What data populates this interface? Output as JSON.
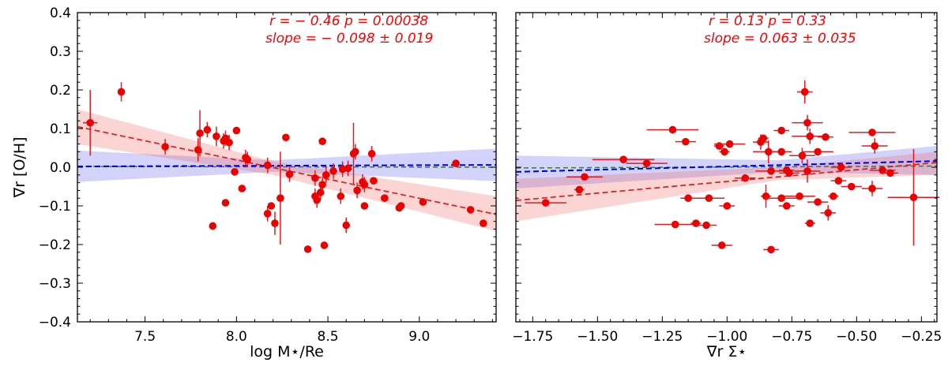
{
  "chart_data": [
    {
      "type": "scatter",
      "ylabel": "∇r [O/H]",
      "xlabel": "log M⋆/Re",
      "xlim": [
        7.13,
        9.42
      ],
      "ylim": [
        -0.4,
        0.4
      ],
      "xticks": [
        7.5,
        8.0,
        8.5,
        9.0
      ],
      "yticks": [
        -0.4,
        -0.3,
        -0.2,
        -0.1,
        0.0,
        0.1,
        0.2,
        0.3,
        0.4
      ],
      "annotation_line1": "r = − 0.46  p = 0.00038",
      "annotation_line2": "slope = − 0.098 ± 0.019",
      "points": [
        [
          7.2,
          0.115,
          0.04,
          0.085
        ],
        [
          7.37,
          0.195,
          0,
          0.025
        ],
        [
          7.61,
          0.053,
          0,
          0.02
        ],
        [
          7.79,
          0.045,
          0,
          0.03
        ],
        [
          7.8,
          0.088,
          0,
          0.06
        ],
        [
          7.84,
          0.097,
          0.02,
          0.02
        ],
        [
          7.87,
          -0.152,
          0,
          0
        ],
        [
          7.89,
          0.08,
          0,
          0.025
        ],
        [
          7.93,
          0.068,
          0,
          0.02
        ],
        [
          7.94,
          0.075,
          0,
          0.02
        ],
        [
          7.96,
          0.064,
          0,
          0.02
        ],
        [
          7.94,
          -0.092,
          0,
          0
        ],
        [
          7.99,
          -0.012,
          0,
          0
        ],
        [
          8.0,
          0.095,
          0,
          0
        ],
        [
          8.03,
          -0.055,
          0,
          0
        ],
        [
          8.05,
          0.025,
          0,
          0.02
        ],
        [
          8.06,
          0.02,
          0,
          0.02
        ],
        [
          8.17,
          0.005,
          0,
          0.02
        ],
        [
          8.17,
          -0.12,
          0,
          0.02
        ],
        [
          8.19,
          -0.1,
          0,
          0
        ],
        [
          8.21,
          -0.145,
          0,
          0.03
        ],
        [
          8.24,
          -0.08,
          0,
          0.12
        ],
        [
          8.27,
          0.077,
          0,
          0
        ],
        [
          8.29,
          -0.018,
          0,
          0.02
        ],
        [
          8.39,
          -0.212,
          0,
          0
        ],
        [
          8.43,
          -0.028,
          0,
          0.02
        ],
        [
          8.43,
          -0.075,
          0,
          0.02
        ],
        [
          8.44,
          -0.085,
          0,
          0.02
        ],
        [
          8.46,
          -0.065,
          0,
          0.02
        ],
        [
          8.47,
          -0.045,
          0,
          0.02
        ],
        [
          8.47,
          0.067,
          0,
          0
        ],
        [
          8.48,
          -0.202,
          0,
          0
        ],
        [
          8.49,
          -0.02,
          0,
          0.02
        ],
        [
          8.53,
          -0.01,
          0,
          0.02
        ],
        [
          8.57,
          -0.075,
          0,
          0.02
        ],
        [
          8.58,
          -0.005,
          0,
          0.02
        ],
        [
          8.6,
          -0.15,
          0,
          0.02
        ],
        [
          8.61,
          -0.003,
          0,
          0.02
        ],
        [
          8.64,
          0.035,
          0,
          0.08
        ],
        [
          8.65,
          0.04,
          0,
          0.02
        ],
        [
          8.66,
          -0.06,
          0,
          0.02
        ],
        [
          8.69,
          -0.038,
          0,
          0.02
        ],
        [
          8.7,
          -0.1,
          0,
          0
        ],
        [
          8.7,
          -0.045,
          0,
          0.02
        ],
        [
          8.74,
          0.035,
          0,
          0.02
        ],
        [
          8.75,
          -0.035,
          0,
          0
        ],
        [
          8.81,
          -0.08,
          0,
          0
        ],
        [
          8.89,
          -0.105,
          0,
          0
        ],
        [
          8.9,
          -0.1,
          0,
          0
        ],
        [
          9.02,
          -0.09,
          0,
          0
        ],
        [
          9.2,
          0.01,
          0,
          0
        ],
        [
          9.28,
          -0.11,
          0,
          0
        ],
        [
          9.35,
          -0.145,
          0,
          0
        ]
      ],
      "red_fit": {
        "x": [
          7.13,
          9.42
        ],
        "y": [
          0.105,
          -0.122
        ],
        "color": "#e8191c"
      },
      "red_band": {
        "x": [
          7.13,
          8.2,
          9.42
        ],
        "upper": [
          0.15,
          0.015,
          -0.075
        ],
        "lower": [
          0.06,
          -0.02,
          -0.165
        ]
      },
      "blue_fit": {
        "x": [
          7.13,
          9.42
        ],
        "y": [
          0.002,
          0.006
        ],
        "color": "#0000dd"
      },
      "blue_band": {
        "x": [
          7.13,
          8.2,
          9.42
        ],
        "upper": [
          0.043,
          0.018,
          0.048
        ],
        "lower": [
          -0.038,
          -0.012,
          -0.036
        ]
      },
      "green_line": {
        "x": [
          7.13,
          9.42
        ],
        "y": [
          0.002,
          0.0
        ],
        "color": "#3a7a3a"
      }
    },
    {
      "type": "scatter",
      "xlabel": "∇r Σ⋆",
      "xlim": [
        -1.815,
        -0.19
      ],
      "ylim": [
        -0.4,
        0.4
      ],
      "xticks": [
        -1.75,
        -1.5,
        -1.25,
        -1.0,
        -0.75,
        -0.5,
        -0.25
      ],
      "xticklabels": [
        "−1.75",
        "−1.50",
        "−1.25",
        "−1.00",
        "−0.75",
        "−0.50",
        "−0.25"
      ],
      "yticks": [
        -0.4,
        -0.3,
        -0.2,
        -0.1,
        0.0,
        0.1,
        0.2,
        0.3,
        0.4
      ],
      "annotation_line1": "r = 0.13  p = 0.33",
      "annotation_line2": "slope = 0.063 ± 0.035",
      "points": [
        [
          -1.7,
          -0.092,
          0.08,
          0
        ],
        [
          -1.57,
          -0.058,
          0.02,
          0
        ],
        [
          -1.55,
          -0.025,
          0.07,
          0
        ],
        [
          -1.4,
          0.02,
          0.12,
          0
        ],
        [
          -1.31,
          0.01,
          0.08,
          0
        ],
        [
          -1.21,
          0.097,
          0.1,
          0
        ],
        [
          -1.2,
          -0.148,
          0.08,
          0
        ],
        [
          -1.16,
          0.066,
          0.04,
          0
        ],
        [
          -1.15,
          -0.08,
          0.03,
          0
        ],
        [
          -1.12,
          -0.145,
          0.02,
          0
        ],
        [
          -1.08,
          -0.15,
          0.04,
          0
        ],
        [
          -1.07,
          -0.08,
          0.06,
          0
        ],
        [
          -1.03,
          0.055,
          0.02,
          0
        ],
        [
          -1.02,
          -0.202,
          0.04,
          0
        ],
        [
          -1.01,
          0.04,
          0.02,
          0
        ],
        [
          -1.0,
          -0.1,
          0.03,
          0
        ],
        [
          -0.99,
          0.06,
          0.06,
          0
        ],
        [
          -0.93,
          -0.028,
          0.04,
          0
        ],
        [
          -0.87,
          0.065,
          0.03,
          0.02
        ],
        [
          -0.86,
          0.075,
          0.02,
          0
        ],
        [
          -0.85,
          -0.075,
          0.02,
          0.03
        ],
        [
          -0.84,
          0.04,
          0.06,
          0.03
        ],
        [
          -0.83,
          -0.01,
          0.06,
          0
        ],
        [
          -0.83,
          -0.213,
          0.03,
          0
        ],
        [
          -0.79,
          0.095,
          0.03,
          0
        ],
        [
          -0.79,
          -0.08,
          0.06,
          0
        ],
        [
          -0.77,
          -0.1,
          0.03,
          0
        ],
        [
          -0.77,
          -0.008,
          0.03,
          0
        ],
        [
          -0.79,
          0.04,
          0.04,
          0
        ],
        [
          -0.76,
          -0.015,
          0.04,
          0
        ],
        [
          -0.71,
          0.03,
          0.05,
          0.02
        ],
        [
          -0.72,
          -0.075,
          0.06,
          0
        ],
        [
          -0.7,
          0.195,
          0.03,
          0.03
        ],
        [
          -0.69,
          0.115,
          0.06,
          0.02
        ],
        [
          -0.68,
          0.08,
          0.07,
          0.02
        ],
        [
          -0.68,
          -0.145,
          0.02,
          0
        ],
        [
          -0.69,
          -0.01,
          0.05,
          0.03
        ],
        [
          -0.65,
          -0.09,
          0.04,
          0
        ],
        [
          -0.65,
          0.04,
          0.06,
          0
        ],
        [
          -0.62,
          0.078,
          0.03,
          0
        ],
        [
          -0.61,
          -0.118,
          0.03,
          0.02
        ],
        [
          -0.59,
          -0.075,
          0.02,
          0
        ],
        [
          -0.57,
          -0.035,
          0.03,
          0
        ],
        [
          -0.56,
          0.0,
          0.04,
          0.01
        ],
        [
          -0.52,
          -0.05,
          0.04,
          0
        ],
        [
          -0.44,
          0.09,
          0.09,
          0
        ],
        [
          -0.43,
          0.055,
          0.05,
          0.02
        ],
        [
          -0.44,
          -0.055,
          0.04,
          0.02
        ],
        [
          -0.4,
          -0.008,
          0.05,
          0
        ],
        [
          -0.37,
          -0.015,
          0.03,
          0
        ],
        [
          -0.28,
          -0.078,
          0.1,
          0.125
        ]
      ],
      "red_fit": {
        "x": [
          -1.815,
          -0.19
        ],
        "y": [
          -0.086,
          0.012
        ],
        "color": "#e8191c"
      },
      "red_band": {
        "x": [
          -1.815,
          -0.8,
          -0.19
        ],
        "upper": [
          -0.03,
          0.0,
          0.04
        ],
        "lower": [
          -0.14,
          -0.033,
          -0.02
        ]
      },
      "blue_fit": {
        "x": [
          -1.815,
          -0.19
        ],
        "y": [
          -0.012,
          0.016
        ],
        "color": "#0000dd"
      },
      "blue_band": {
        "x": [
          -1.815,
          -0.8,
          -0.19
        ],
        "upper": [
          0.03,
          0.018,
          0.055
        ],
        "lower": [
          -0.055,
          -0.012,
          -0.02
        ]
      },
      "green_line": {
        "x": [
          -1.815,
          -0.19
        ],
        "y": [
          -0.002,
          0.003
        ],
        "color": "#3a7a3a"
      }
    }
  ]
}
